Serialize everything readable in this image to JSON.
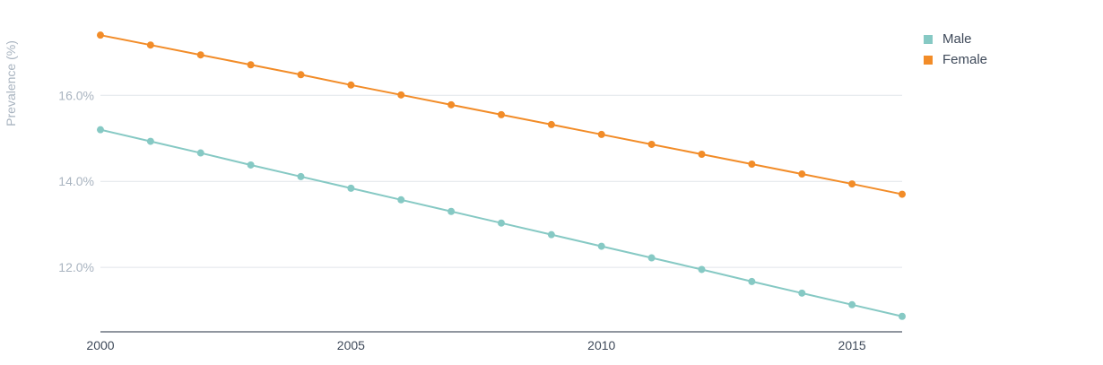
{
  "chart_data": {
    "type": "line",
    "title": "",
    "xlabel": "",
    "ylabel": "Prevalence (%)",
    "x": [
      2000,
      2001,
      2002,
      2003,
      2004,
      2005,
      2006,
      2007,
      2008,
      2009,
      2010,
      2011,
      2012,
      2013,
      2014,
      2015,
      2016
    ],
    "xlim": [
      2000,
      2016
    ],
    "ylim": [
      10.5,
      17.8
    ],
    "x_ticks": [
      2000,
      2005,
      2010,
      2015
    ],
    "x_tick_labels": [
      "2000",
      "2005",
      "2010",
      "2015"
    ],
    "y_ticks": [
      12,
      14,
      16
    ],
    "y_tick_labels": [
      "12.0%",
      "14.0%",
      "16.0%"
    ],
    "grid": "horizontal",
    "legend_position": "top-right",
    "series": [
      {
        "name": "Male",
        "color": "#86c9c4",
        "values": [
          15.2,
          14.93,
          14.66,
          14.38,
          14.11,
          13.84,
          13.57,
          13.3,
          13.03,
          12.76,
          12.49,
          12.22,
          11.95,
          11.67,
          11.4,
          11.13,
          10.86
        ]
      },
      {
        "name": "Female",
        "color": "#f28c28",
        "values": [
          17.4,
          17.17,
          16.94,
          16.71,
          16.48,
          16.24,
          16.01,
          15.78,
          15.55,
          15.32,
          15.09,
          14.86,
          14.63,
          14.4,
          14.17,
          13.94,
          13.7
        ]
      }
    ]
  }
}
